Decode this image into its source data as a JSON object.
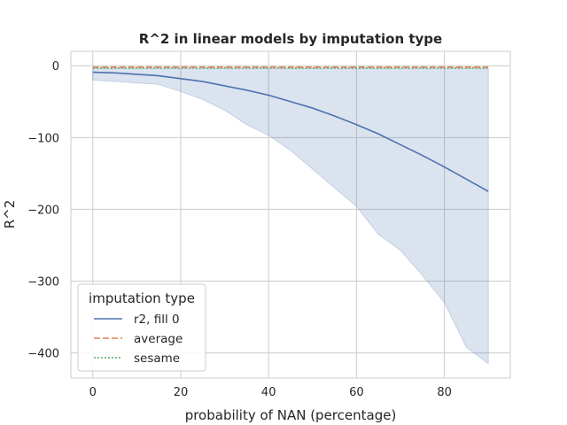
{
  "chart_data": {
    "type": "line",
    "title": "R^2 in linear models by imputation type",
    "xlabel": "probability of NAN (percentage)",
    "ylabel": "R^2",
    "xlim": [
      -5,
      95
    ],
    "ylim": [
      -435,
      20
    ],
    "xticks": [
      0,
      20,
      40,
      60,
      80
    ],
    "yticks": [
      0,
      -100,
      -200,
      -300,
      -400
    ],
    "xtick_labels": [
      "0",
      "20",
      "40",
      "60",
      "80"
    ],
    "ytick_labels": [
      "0",
      "−100",
      "−200",
      "−300",
      "−400"
    ],
    "grid": true,
    "legend": {
      "title": "imputation type",
      "placement": "lower-left"
    },
    "x": [
      0,
      5,
      10,
      15,
      20,
      25,
      30,
      35,
      40,
      45,
      50,
      55,
      60,
      65,
      70,
      75,
      80,
      85,
      90
    ],
    "series": [
      {
        "name": "r2, fill 0",
        "color": "#4c72b0",
        "style": "solid",
        "values": [
          -9,
          -10,
          -12,
          -14,
          -18,
          -22,
          -28,
          -34,
          -41,
          -50,
          -59,
          -70,
          -82,
          -95,
          -110,
          -125,
          -141,
          -158,
          -175
        ],
        "band_lower": [
          -20,
          -22,
          -24,
          -26,
          -36,
          -47,
          -62,
          -82,
          -97,
          -118,
          -144,
          -170,
          -196,
          -235,
          -257,
          -292,
          -330,
          -392,
          -415
        ],
        "band_upper": [
          -4,
          -4,
          -4,
          -4,
          -4,
          -4,
          -4,
          -4,
          -4,
          -4,
          -4,
          -4,
          -4,
          -4,
          -4,
          -4,
          -4,
          -4,
          -4
        ]
      },
      {
        "name": "average",
        "color": "#dd8452",
        "style": "dashed",
        "values": [
          -2,
          -2,
          -2,
          -2,
          -2,
          -2,
          -2,
          -2,
          -2,
          -2,
          -2,
          -2,
          -2,
          -2,
          -2,
          -2,
          -2,
          -2,
          -2
        ]
      },
      {
        "name": "sesame",
        "color": "#55a868",
        "style": "dotted",
        "values": [
          -3,
          -3,
          -3,
          -3,
          -3,
          -3,
          -3,
          -3,
          -3,
          -3,
          -3,
          -3,
          -3,
          -3,
          -3,
          -3,
          -3,
          -3,
          -3
        ]
      }
    ]
  }
}
